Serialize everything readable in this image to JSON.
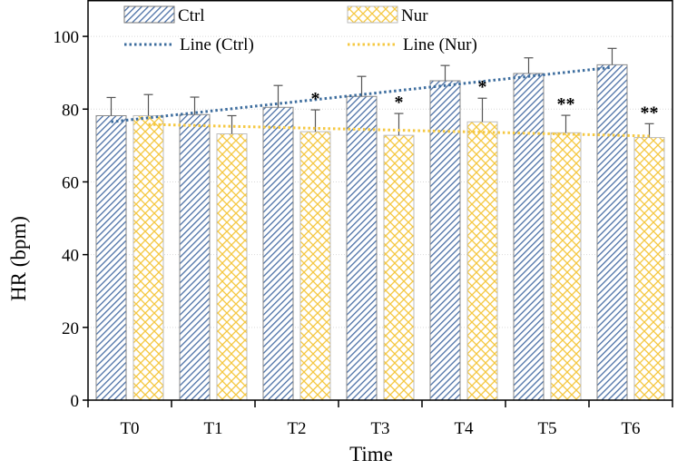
{
  "chart_data": {
    "type": "bar",
    "title": "",
    "xlabel": "Time",
    "ylabel": "HR (bpm)",
    "ylim": [
      0,
      110
    ],
    "yticks": [
      0,
      20,
      40,
      60,
      80,
      100
    ],
    "ytick_labels": [
      "0",
      "20",
      "40",
      "60",
      "80",
      "100"
    ],
    "categories": [
      "T0",
      "T1",
      "T2",
      "T3",
      "T4",
      "T5",
      "T6"
    ],
    "series": [
      {
        "name": "Ctrl",
        "values": [
          78.2,
          78.5,
          80.5,
          83.5,
          87.8,
          89.8,
          92.2
        ],
        "errors": [
          5.0,
          4.8,
          6.0,
          5.5,
          4.2,
          4.3,
          4.5
        ],
        "color": "#4a6fa5",
        "pattern": "diagonal"
      },
      {
        "name": "Nur",
        "values": [
          78.2,
          73.2,
          73.8,
          72.8,
          76.5,
          73.5,
          72.2
        ],
        "errors": [
          5.8,
          5.0,
          6.0,
          6.0,
          6.5,
          4.8,
          3.8
        ],
        "color": "#f5c842",
        "pattern": "crosshatch"
      }
    ],
    "trendlines": [
      {
        "name": "Line (Ctrl)",
        "start": 76.5,
        "end": 91.5,
        "color": "#3d6d9e"
      },
      {
        "name": "Line (Nur)",
        "start": 75.8,
        "end": 72.6,
        "color": "#f5c842"
      }
    ],
    "significance": [
      "",
      "",
      "*",
      "*",
      "*",
      "**",
      "**"
    ],
    "legend": {
      "position": "top",
      "entries": [
        "Ctrl",
        "Nur",
        "Line (Ctrl)",
        "Line (Nur)"
      ]
    },
    "grid": true
  }
}
